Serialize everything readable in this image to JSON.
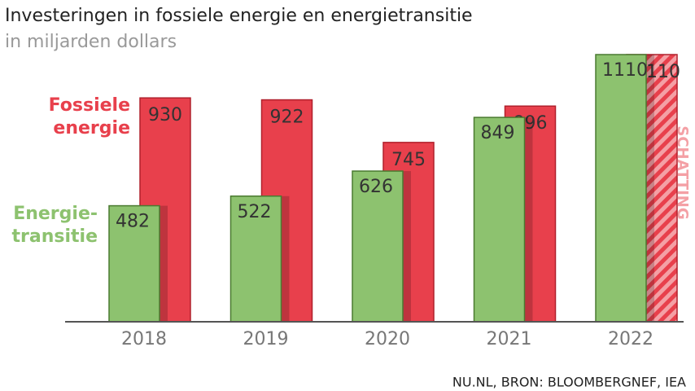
{
  "chart_data": {
    "type": "bar",
    "title": "Investeringen in fossiele energie en energietransitie",
    "subtitle": "in miljarden dollars",
    "categories": [
      "2018",
      "2019",
      "2020",
      "2021",
      "2022"
    ],
    "series": [
      {
        "name": "Fossiele energie",
        "color": "#e8404c",
        "values": [
          930,
          922,
          745,
          896,
          1110
        ],
        "hatched": [
          false,
          false,
          false,
          false,
          true
        ]
      },
      {
        "name": "Energie-transitie",
        "color": "#8dc26f",
        "values": [
          482,
          522,
          626,
          849,
          1110
        ]
      }
    ],
    "annotation": "SCHATTING",
    "source": "NU.NL, BRON: BLOOMBERGNEF, IEA"
  }
}
